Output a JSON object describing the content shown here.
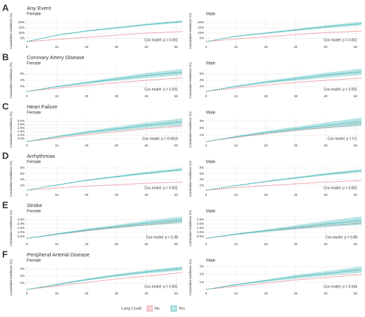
{
  "chart_data": [
    {
      "type": "line",
      "panel": "A",
      "title": "Any Event",
      "subtitle": "Female",
      "ylabel": "Cumulative Incidence (%)",
      "annotation": "Cox model: p = 0.001",
      "legend_title": "Long Covid",
      "x": [
        0,
        10,
        20,
        30,
        40,
        52
      ],
      "xlim": [
        0,
        52
      ],
      "xticks": [
        0,
        10,
        20,
        30,
        40,
        50
      ],
      "ylim": [
        0,
        24
      ],
      "yticks": [
        {
          "value": 5,
          "label": "5%"
        },
        {
          "value": 10,
          "label": "10%"
        },
        {
          "value": 15,
          "label": "15%"
        },
        {
          "value": 20,
          "label": "20%"
        }
      ],
      "series": [
        {
          "name": "No",
          "color": "#e8747c",
          "values": [
            2,
            4,
            6,
            8,
            10,
            11.5
          ]
        },
        {
          "name": "Yes",
          "color": "#1fa8a8",
          "values": [
            2,
            8,
            12,
            15,
            18,
            21
          ],
          "lower": [
            2,
            7.6,
            11.4,
            14.3,
            17.1,
            19.8
          ],
          "upper": [
            2,
            8.4,
            12.6,
            15.7,
            18.9,
            22
          ]
        }
      ]
    },
    {
      "type": "line",
      "subtitle": "Male",
      "ylabel": "Cumulative Incidence (%)",
      "annotation": "Cox model: p = 0.001",
      "x": [
        0,
        10,
        20,
        30,
        40,
        52
      ],
      "xlim": [
        0,
        52
      ],
      "xticks": [
        0,
        10,
        20,
        30,
        40,
        50
      ],
      "ylim": [
        0,
        24
      ],
      "yticks": [
        {
          "value": 5,
          "label": "5%"
        },
        {
          "value": 10,
          "label": "10%"
        },
        {
          "value": 15,
          "label": "15%"
        },
        {
          "value": 20,
          "label": "20%"
        }
      ],
      "series": [
        {
          "name": "No",
          "color": "#e8747c",
          "values": [
            2,
            4.5,
            6.5,
            8.5,
            10.5,
            12
          ]
        },
        {
          "name": "Yes",
          "color": "#1fa8a8",
          "values": [
            2,
            7,
            10,
            13,
            16,
            19
          ],
          "lower": [
            2,
            6.5,
            9.3,
            12,
            14.7,
            17.3
          ],
          "upper": [
            2,
            7.5,
            10.7,
            14,
            17.3,
            20.7
          ]
        }
      ]
    },
    {
      "type": "line",
      "panel": "B",
      "title": "Coronary Artery Disease",
      "subtitle": "Female",
      "ylabel": "Cumulative Incidence (%)",
      "annotation": "Cox model: p = 0.001",
      "x": [
        0,
        10,
        20,
        30,
        40,
        52
      ],
      "xlim": [
        0,
        52
      ],
      "xticks": [
        0,
        10,
        20,
        30,
        40,
        50
      ],
      "ylim": [
        0,
        8
      ],
      "yticks": [
        {
          "value": 2,
          "label": "2%"
        },
        {
          "value": 4,
          "label": "4%"
        },
        {
          "value": 6,
          "label": "6%"
        }
      ],
      "series": [
        {
          "name": "No",
          "color": "#e8747c",
          "values": [
            0.5,
            1.5,
            2.4,
            3.2,
            4,
            4.8
          ]
        },
        {
          "name": "Yes",
          "color": "#1fa8a8",
          "values": [
            0.5,
            2,
            3.2,
            4.4,
            5.5,
            6.6
          ],
          "lower": [
            0.5,
            1.8,
            2.8,
            3.8,
            4.7,
            5.6
          ],
          "upper": [
            0.5,
            2.2,
            3.6,
            5,
            6.3,
            7.6
          ]
        }
      ]
    },
    {
      "type": "line",
      "subtitle": "Male",
      "ylabel": "Cumulative Incidence (%)",
      "annotation": "Cox model: p = 0.001",
      "x": [
        0,
        10,
        20,
        30,
        40,
        52
      ],
      "xlim": [
        0,
        52
      ],
      "xticks": [
        0,
        10,
        20,
        30,
        40,
        50
      ],
      "ylim": [
        0,
        8
      ],
      "yticks": [
        {
          "value": 2,
          "label": "2%"
        },
        {
          "value": 4,
          "label": "4%"
        },
        {
          "value": 6,
          "label": "6%"
        }
      ],
      "series": [
        {
          "name": "No",
          "color": "#e8747c",
          "values": [
            0.5,
            1.6,
            2.5,
            3.3,
            4,
            4.7
          ]
        },
        {
          "name": "Yes",
          "color": "#1fa8a8",
          "values": [
            0.5,
            2.1,
            3.4,
            4.5,
            5.6,
            6.7
          ],
          "lower": [
            0.5,
            1.9,
            3,
            3.9,
            4.8,
            5.7
          ],
          "upper": [
            0.5,
            2.3,
            3.8,
            5.1,
            6.4,
            7.7
          ]
        }
      ]
    },
    {
      "type": "line",
      "panel": "C",
      "title": "Heart Failure",
      "subtitle": "Female",
      "ylabel": "Cumulative Incidence (%)",
      "annotation": "Cox model: p = 0.0016",
      "x": [
        0,
        10,
        20,
        30,
        40,
        52
      ],
      "xlim": [
        0,
        52
      ],
      "xticks": [
        0,
        10,
        20,
        30,
        40,
        50
      ],
      "ylim": [
        0,
        3.6
      ],
      "yticks": [
        {
          "value": 0.5,
          "label": "0.5%"
        },
        {
          "value": 1,
          "label": "1.0%"
        },
        {
          "value": 1.5,
          "label": "1.5%"
        },
        {
          "value": 2,
          "label": "2.0%"
        },
        {
          "value": 2.5,
          "label": "2.5%"
        },
        {
          "value": 3,
          "label": "3.0%"
        }
      ],
      "series": [
        {
          "name": "No",
          "color": "#e8747c",
          "values": [
            0.1,
            0.6,
            1.1,
            1.5,
            1.9,
            2.3
          ]
        },
        {
          "name": "Yes",
          "color": "#1fa8a8",
          "values": [
            0.1,
            0.8,
            1.4,
            1.9,
            2.4,
            2.9
          ],
          "lower": [
            0.1,
            0.7,
            1.2,
            1.6,
            2,
            2.4
          ],
          "upper": [
            0.1,
            0.9,
            1.6,
            2.2,
            2.8,
            3.4
          ]
        }
      ]
    },
    {
      "type": "line",
      "subtitle": "Male",
      "ylabel": "Cumulative Incidence (%)",
      "annotation": "Cox model: p = 0.1",
      "x": [
        0,
        10,
        20,
        30,
        40,
        52
      ],
      "xlim": [
        0,
        52
      ],
      "xticks": [
        0,
        10,
        20,
        30,
        40,
        50
      ],
      "ylim": [
        0,
        3.6
      ],
      "yticks": [
        {
          "value": 1,
          "label": "1%"
        },
        {
          "value": 2,
          "label": "2%"
        },
        {
          "value": 3,
          "label": "3%"
        }
      ],
      "series": [
        {
          "name": "No",
          "color": "#e8747c",
          "values": [
            0.1,
            0.7,
            1.2,
            1.7,
            2.1,
            2.6
          ]
        },
        {
          "name": "Yes",
          "color": "#1fa8a8",
          "values": [
            0.1,
            0.8,
            1.4,
            1.9,
            2.4,
            2.9
          ],
          "lower": [
            0.1,
            0.7,
            1.2,
            1.6,
            2,
            2.3
          ],
          "upper": [
            0.1,
            0.9,
            1.6,
            2.2,
            2.8,
            3.5
          ]
        }
      ]
    },
    {
      "type": "line",
      "panel": "D",
      "title": "Arrhythmias",
      "subtitle": "Female",
      "ylabel": "Cumulative Incidence (%)",
      "annotation": "Cox model: p = 0.001",
      "x": [
        0,
        10,
        20,
        30,
        40,
        52
      ],
      "xlim": [
        0,
        52
      ],
      "xticks": [
        0,
        10,
        20,
        30,
        40,
        50
      ],
      "ylim": [
        0,
        8.5
      ],
      "yticks": [
        {
          "value": 2,
          "label": "2%"
        },
        {
          "value": 4,
          "label": "4%"
        },
        {
          "value": 6,
          "label": "6%"
        },
        {
          "value": 8,
          "label": "8%"
        }
      ],
      "series": [
        {
          "name": "No",
          "color": "#e8747c",
          "values": [
            0.5,
            1.2,
            1.8,
            2.3,
            2.8,
            3.2
          ]
        },
        {
          "name": "Yes",
          "color": "#1fa8a8",
          "values": [
            0.5,
            2.2,
            3.8,
            5,
            6.2,
            7.4
          ],
          "lower": [
            0.5,
            2.05,
            3.6,
            4.7,
            5.8,
            6.9
          ],
          "upper": [
            0.5,
            2.35,
            4,
            5.3,
            6.6,
            7.9
          ]
        }
      ]
    },
    {
      "type": "line",
      "subtitle": "Male",
      "ylabel": "Cumulative Incidence (%)",
      "annotation": "Cox model: p = 0.001",
      "x": [
        0,
        10,
        20,
        30,
        40,
        52
      ],
      "xlim": [
        0,
        52
      ],
      "xticks": [
        0,
        10,
        20,
        30,
        40,
        50
      ],
      "ylim": [
        0,
        8.5
      ],
      "yticks": [
        {
          "value": 2,
          "label": "2%"
        },
        {
          "value": 4,
          "label": "4%"
        },
        {
          "value": 6,
          "label": "6%"
        },
        {
          "value": 8,
          "label": "8%"
        }
      ],
      "series": [
        {
          "name": "No",
          "color": "#e8747c",
          "values": [
            0.5,
            1.3,
            2,
            2.6,
            3.2,
            3.7
          ]
        },
        {
          "name": "Yes",
          "color": "#1fa8a8",
          "values": [
            0.5,
            2,
            3.4,
            4.6,
            5.8,
            7
          ],
          "lower": [
            0.5,
            1.85,
            3.2,
            4.3,
            5.4,
            6.5
          ],
          "upper": [
            0.5,
            2.15,
            3.6,
            4.9,
            6.2,
            7.5
          ]
        }
      ]
    },
    {
      "type": "line",
      "panel": "E",
      "title": "Stroke",
      "subtitle": "Female",
      "ylabel": "Cumulative Incidence (%)",
      "annotation": "Cox model: p = 0.38",
      "x": [
        0,
        10,
        20,
        30,
        40,
        52
      ],
      "xlim": [
        0,
        52
      ],
      "xticks": [
        0,
        10,
        20,
        30,
        40,
        50
      ],
      "ylim": [
        0,
        3
      ],
      "yticks": [
        {
          "value": 0.5,
          "label": "0.5%"
        },
        {
          "value": 1,
          "label": "1.0%"
        },
        {
          "value": 1.5,
          "label": "1.5%"
        },
        {
          "value": 2,
          "label": "2.0%"
        },
        {
          "value": 2.5,
          "label": "2.5%"
        }
      ],
      "series": [
        {
          "name": "No",
          "color": "#e8747c",
          "values": [
            0.3,
            0.8,
            1.2,
            1.6,
            1.9,
            2.3
          ]
        },
        {
          "name": "Yes",
          "color": "#1fa8a8",
          "values": [
            0.3,
            0.8,
            1.3,
            1.7,
            2.1,
            2.5
          ],
          "lower": [
            0.3,
            0.7,
            1.15,
            1.5,
            1.8,
            2.1
          ],
          "upper": [
            0.3,
            0.9,
            1.45,
            1.9,
            2.4,
            2.9
          ]
        }
      ]
    },
    {
      "type": "line",
      "subtitle": "Male",
      "ylabel": "Cumulative Incidence (%)",
      "annotation": "Cox model: p = 0.89",
      "x": [
        0,
        10,
        20,
        30,
        40,
        52
      ],
      "xlim": [
        0,
        52
      ],
      "xticks": [
        0,
        10,
        20,
        30,
        40,
        50
      ],
      "ylim": [
        0,
        3
      ],
      "yticks": [
        {
          "value": 0.5,
          "label": "0.5%"
        },
        {
          "value": 1,
          "label": "1.0%"
        },
        {
          "value": 1.5,
          "label": "1.5%"
        },
        {
          "value": 2,
          "label": "2.0%"
        },
        {
          "value": 2.5,
          "label": "2.5%"
        }
      ],
      "series": [
        {
          "name": "No",
          "color": "#e8747c",
          "values": [
            0.3,
            0.8,
            1.2,
            1.5,
            1.8,
            2.1
          ]
        },
        {
          "name": "Yes",
          "color": "#1fa8a8",
          "values": [
            0.3,
            0.8,
            1.2,
            1.6,
            2,
            2.4
          ],
          "lower": [
            0.3,
            0.7,
            1.05,
            1.35,
            1.65,
            1.9
          ],
          "upper": [
            0.3,
            0.9,
            1.35,
            1.85,
            2.35,
            2.9
          ]
        }
      ]
    },
    {
      "type": "line",
      "panel": "F",
      "title": "Peripheral Arterial Disease",
      "subtitle": "Female",
      "ylabel": "Cumulative Incidence (%)",
      "annotation": "Cox model: p = 0.001",
      "x": [
        0,
        10,
        20,
        30,
        40,
        52
      ],
      "xlim": [
        0,
        52
      ],
      "xticks": [
        0,
        10,
        20,
        30,
        40,
        50
      ],
      "ylim": [
        0,
        3.6
      ],
      "yticks": [
        {
          "value": 1,
          "label": "1%"
        },
        {
          "value": 2,
          "label": "2%"
        },
        {
          "value": 3,
          "label": "3%"
        }
      ],
      "series": [
        {
          "name": "No",
          "color": "#e8747c",
          "values": [
            0.1,
            0.6,
            1.1,
            1.6,
            2,
            2.5
          ]
        },
        {
          "name": "Yes",
          "color": "#1fa8a8",
          "values": [
            0.1,
            0.8,
            1.5,
            2.1,
            2.6,
            3.1
          ],
          "lower": [
            0.1,
            0.7,
            1.35,
            1.9,
            2.35,
            2.8
          ],
          "upper": [
            0.1,
            0.9,
            1.65,
            2.3,
            2.85,
            3.4
          ]
        }
      ]
    },
    {
      "type": "line",
      "subtitle": "Male",
      "ylabel": "Cumulative Incidence (%)",
      "annotation": "Cox model: p = 0.044",
      "x": [
        0,
        10,
        20,
        30,
        40,
        52
      ],
      "xlim": [
        0,
        52
      ],
      "xticks": [
        0,
        10,
        20,
        30,
        40,
        50
      ],
      "ylim": [
        0,
        3.2
      ],
      "yticks": [
        {
          "value": 1,
          "label": "1%"
        },
        {
          "value": 2,
          "label": "2%"
        },
        {
          "value": 3,
          "label": "3%"
        }
      ],
      "series": [
        {
          "name": "No",
          "color": "#e8747c",
          "values": [
            0.1,
            0.5,
            0.9,
            1.3,
            1.6,
            2
          ]
        },
        {
          "name": "Yes",
          "color": "#1fa8a8",
          "values": [
            0.1,
            0.7,
            1.2,
            1.7,
            2.1,
            2.6
          ],
          "lower": [
            0.1,
            0.6,
            1.05,
            1.45,
            1.8,
            2.2
          ],
          "upper": [
            0.1,
            0.8,
            1.35,
            1.95,
            2.4,
            3
          ]
        }
      ]
    }
  ]
}
